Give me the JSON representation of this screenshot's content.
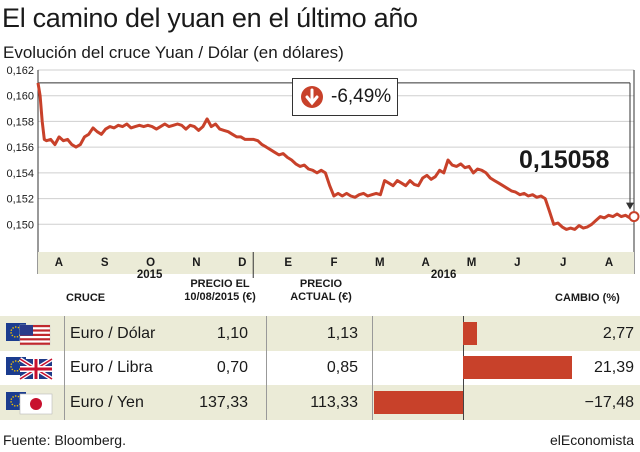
{
  "header": {
    "title": "El camino del yuan en el último año",
    "subtitle": "Evolución del cruce Yuan / Dólar (en dólares)"
  },
  "chart_data": {
    "type": "line",
    "ylim": [
      0.148,
      0.162
    ],
    "yticks": [
      "0,162",
      "0,160",
      "0,158",
      "0,156",
      "0,154",
      "0,152",
      "0,150"
    ],
    "ytick_values": [
      0.162,
      0.16,
      0.158,
      0.156,
      0.154,
      0.152,
      0.15
    ],
    "months": [
      "A",
      "S",
      "O",
      "N",
      "D",
      "E",
      "F",
      "M",
      "A",
      "M",
      "J",
      "J",
      "A"
    ],
    "years": [
      "2015",
      "2016"
    ],
    "grid": true,
    "change_label": "-6,49%",
    "last_value_label": "0,15058",
    "series": [
      {
        "points": [
          [
            0,
            0.161
          ],
          [
            1,
            0.16
          ],
          [
            2,
            0.158
          ],
          [
            3,
            0.1566
          ],
          [
            4,
            0.1565
          ],
          [
            6,
            0.1566
          ],
          [
            8,
            0.1562
          ],
          [
            10,
            0.1568
          ],
          [
            12,
            0.1565
          ],
          [
            14,
            0.1566
          ],
          [
            16,
            0.1562
          ],
          [
            18,
            0.156
          ],
          [
            20,
            0.1562
          ],
          [
            22,
            0.1568
          ],
          [
            24,
            0.157
          ],
          [
            26,
            0.1575
          ],
          [
            28,
            0.1572
          ],
          [
            30,
            0.157
          ],
          [
            32,
            0.1574
          ],
          [
            34,
            0.1576
          ],
          [
            36,
            0.1575
          ],
          [
            38,
            0.1577
          ],
          [
            40,
            0.1576
          ],
          [
            42,
            0.1578
          ],
          [
            44,
            0.1575
          ],
          [
            46,
            0.1576
          ],
          [
            48,
            0.1577
          ],
          [
            50,
            0.1576
          ],
          [
            52,
            0.1577
          ],
          [
            54,
            0.1576
          ],
          [
            56,
            0.1574
          ],
          [
            58,
            0.1576
          ],
          [
            60,
            0.1578
          ],
          [
            62,
            0.1576
          ],
          [
            64,
            0.1577
          ],
          [
            66,
            0.1578
          ],
          [
            68,
            0.1577
          ],
          [
            70,
            0.1574
          ],
          [
            72,
            0.1577
          ],
          [
            74,
            0.1576
          ],
          [
            76,
            0.1573
          ],
          [
            78,
            0.1576
          ],
          [
            80,
            0.1582
          ],
          [
            82,
            0.1576
          ],
          [
            84,
            0.1578
          ],
          [
            86,
            0.1574
          ],
          [
            88,
            0.1573
          ],
          [
            90,
            0.1572
          ],
          [
            92,
            0.157
          ],
          [
            94,
            0.1568
          ],
          [
            96,
            0.1568
          ],
          [
            98,
            0.1566
          ],
          [
            100,
            0.1566
          ],
          [
            102,
            0.1566
          ],
          [
            104,
            0.1565
          ],
          [
            106,
            0.1562
          ],
          [
            108,
            0.156
          ],
          [
            110,
            0.1558
          ],
          [
            112,
            0.1556
          ],
          [
            114,
            0.1554
          ],
          [
            116,
            0.1555
          ],
          [
            118,
            0.1552
          ],
          [
            120,
            0.155
          ],
          [
            122,
            0.1547
          ],
          [
            124,
            0.1545
          ],
          [
            126,
            0.1546
          ],
          [
            128,
            0.1543
          ],
          [
            130,
            0.1542
          ],
          [
            132,
            0.154
          ],
          [
            134,
            0.1542
          ],
          [
            136,
            0.154
          ],
          [
            138,
            0.153
          ],
          [
            140,
            0.1522
          ],
          [
            142,
            0.1524
          ],
          [
            144,
            0.1522
          ],
          [
            146,
            0.1524
          ],
          [
            148,
            0.1522
          ],
          [
            150,
            0.1521
          ],
          [
            152,
            0.1523
          ],
          [
            154,
            0.1524
          ],
          [
            156,
            0.1522
          ],
          [
            158,
            0.1523
          ],
          [
            160,
            0.1524
          ],
          [
            162,
            0.1523
          ],
          [
            164,
            0.1534
          ],
          [
            166,
            0.1532
          ],
          [
            168,
            0.153
          ],
          [
            170,
            0.1534
          ],
          [
            172,
            0.1532
          ],
          [
            174,
            0.153
          ],
          [
            176,
            0.1534
          ],
          [
            178,
            0.1531
          ],
          [
            180,
            0.153
          ],
          [
            182,
            0.1536
          ],
          [
            184,
            0.1538
          ],
          [
            186,
            0.1535
          ],
          [
            188,
            0.1537
          ],
          [
            190,
            0.1542
          ],
          [
            192,
            0.154
          ],
          [
            194,
            0.155
          ],
          [
            196,
            0.1546
          ],
          [
            198,
            0.1545
          ],
          [
            200,
            0.1547
          ],
          [
            202,
            0.1544
          ],
          [
            204,
            0.1545
          ],
          [
            206,
            0.154
          ],
          [
            208,
            0.1543
          ],
          [
            210,
            0.1542
          ],
          [
            212,
            0.154
          ],
          [
            214,
            0.1536
          ],
          [
            216,
            0.1534
          ],
          [
            218,
            0.1532
          ],
          [
            220,
            0.153
          ],
          [
            222,
            0.1528
          ],
          [
            224,
            0.1526
          ],
          [
            226,
            0.1525
          ],
          [
            228,
            0.1523
          ],
          [
            230,
            0.1524
          ],
          [
            232,
            0.1522
          ],
          [
            234,
            0.1523
          ],
          [
            236,
            0.1521
          ],
          [
            238,
            0.1522
          ],
          [
            240,
            0.152
          ],
          [
            242,
            0.151
          ],
          [
            244,
            0.15
          ],
          [
            246,
            0.1501
          ],
          [
            248,
            0.1498
          ],
          [
            250,
            0.1496
          ],
          [
            252,
            0.1497
          ],
          [
            254,
            0.1496
          ],
          [
            256,
            0.1499
          ],
          [
            258,
            0.1497
          ],
          [
            260,
            0.1498
          ],
          [
            262,
            0.15
          ],
          [
            264,
            0.1503
          ],
          [
            266,
            0.1506
          ],
          [
            268,
            0.1505
          ],
          [
            270,
            0.1507
          ],
          [
            272,
            0.1506
          ],
          [
            274,
            0.1508
          ],
          [
            276,
            0.1506
          ],
          [
            278,
            0.1507
          ],
          [
            280,
            0.1505
          ],
          [
            282,
            0.1506
          ]
        ]
      }
    ]
  },
  "table": {
    "headers": {
      "cruce": "CRUCE",
      "precio_el": "PRECIO EL",
      "precio_el_date": "10/08/2015 (€)",
      "precio": "PRECIO",
      "precio_actual": "ACTUAL (€)",
      "cambio": "CAMBIO (%)"
    },
    "rows": [
      {
        "pair": "Euro / Dólar",
        "prev": "1,10",
        "now": "1,13",
        "change_label": "2,77",
        "change": 2.77
      },
      {
        "pair": "Euro / Libra",
        "prev": "0,70",
        "now": "0,85",
        "change_label": "21,39",
        "change": 21.39
      },
      {
        "pair": "Euro / Yen",
        "prev": "137,33",
        "now": "113,33",
        "change_label": "−17,48",
        "change": -17.48
      }
    ],
    "flag_icons": [
      "eu-flag-icon",
      "us-flag-icon",
      "uk-flag-icon",
      "japan-flag-icon"
    ]
  },
  "footer": {
    "source": "Fuente: Bloomberg.",
    "brand": "elEconomista"
  },
  "colors": {
    "line": "#c8412a",
    "bar": "#c8412a",
    "shade": "#ebebd7"
  }
}
